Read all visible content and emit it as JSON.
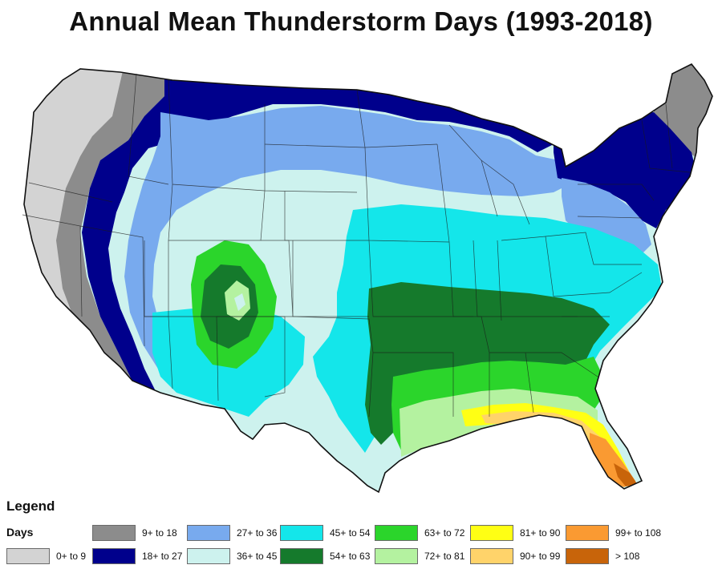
{
  "map": {
    "title": "Annual Mean Thunderstorm Days (1993-2018)"
  },
  "legend": {
    "heading": "Legend",
    "subheading": "Days",
    "items": [
      {
        "label": "0+ to 9",
        "color": "#d3d3d3"
      },
      {
        "label": "9+ to 18",
        "color": "#8c8c8c"
      },
      {
        "label": "18+ to 27",
        "color": "#00008c"
      },
      {
        "label": "27+ to 36",
        "color": "#78aaee"
      },
      {
        "label": "36+ to 45",
        "color": "#cdf2ee"
      },
      {
        "label": "45+ to 54",
        "color": "#14e6ea"
      },
      {
        "label": "54+ to 63",
        "color": "#157a2c"
      },
      {
        "label": "63+ to 72",
        "color": "#2bd52b"
      },
      {
        "label": "72+ to 81",
        "color": "#b4f2a0"
      },
      {
        "label": "81+ to 90",
        "color": "#ffff14"
      },
      {
        "label": "90+ to 99",
        "color": "#ffd36a"
      },
      {
        "label": "99+ to 108",
        "color": "#fa9a32"
      },
      {
        "label": "> 108",
        "color": "#c8640a"
      }
    ]
  }
}
